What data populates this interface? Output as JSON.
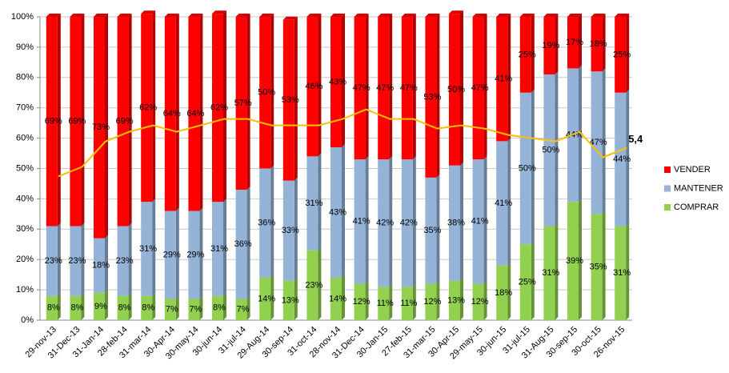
{
  "chart_data": {
    "type": "bar",
    "stacked": true,
    "categories": [
      "29-nov-13",
      "31-Dec-13",
      "31-Jan-14",
      "28-feb-14",
      "31-mar-14",
      "30-Apr-14",
      "30-may-14",
      "30-jun-14",
      "31-jul-14",
      "29-Aug-14",
      "30-sep-14",
      "31-oct-14",
      "28-nov-14",
      "31-Dec-14",
      "30-Jan-15",
      "27-feb-15",
      "31-mar-15",
      "30-Apr-15",
      "29-may-15",
      "30-jun-15",
      "31-jul-15",
      "31-Aug-15",
      "30-sep-15",
      "30-oct-15",
      "26-nov-15"
    ],
    "series": [
      {
        "name": "COMPRAR",
        "color": "#92d050",
        "values": [
          8,
          8,
          9,
          8,
          8,
          7,
          7,
          8,
          7,
          14,
          13,
          23,
          14,
          12,
          11,
          11,
          12,
          13,
          12,
          18,
          25,
          31,
          39,
          35,
          31
        ],
        "value_labels": [
          "8%",
          "8%",
          "9%",
          "8%",
          "8%",
          "7%",
          "7%",
          "8%",
          "7%",
          "14%",
          "13%",
          "23%",
          "14%",
          "12%",
          "11%",
          "11%",
          "12%",
          "13%",
          "12%",
          "18%",
          "25%",
          "31%",
          "39%",
          "35%",
          "31%"
        ]
      },
      {
        "name": "MANTENER",
        "color": "#95b3d7",
        "values": [
          23,
          23,
          18,
          23,
          31,
          29,
          29,
          31,
          36,
          36,
          33,
          31,
          43,
          41,
          42,
          42,
          35,
          38,
          41,
          41,
          50,
          50,
          44,
          47,
          44
        ],
        "value_labels": [
          "23%",
          "23%",
          "18%",
          "23%",
          "31%",
          "29%",
          "29%",
          "31%",
          "36%",
          "36%",
          "33%",
          "31%",
          "43%",
          "41%",
          "42%",
          "42%",
          "35%",
          "38%",
          "41%",
          "41%",
          "50%",
          "50%",
          "44%",
          "47%",
          "44%"
        ]
      },
      {
        "name": "VENDER",
        "color": "#ff0000",
        "values": [
          69,
          69,
          73,
          69,
          62,
          64,
          64,
          62,
          57,
          50,
          53,
          46,
          43,
          47,
          47,
          47,
          53,
          50,
          47,
          41,
          25,
          19,
          17,
          18,
          25
        ],
        "value_labels": [
          "69%",
          "69%",
          "73%",
          "69%",
          "62%",
          "64%",
          "64%",
          "62%",
          "57%",
          "50%",
          "53%",
          "46%",
          "43%",
          "47%",
          "47%",
          "47%",
          "53%",
          "50%",
          "47%",
          "41%",
          "25%",
          "19%",
          "17%",
          "18%",
          "25%"
        ]
      },
      {
        "type": "line",
        "axis": "y2",
        "color": "#ffc000",
        "values": [
          4.5,
          4.8,
          5.6,
          5.9,
          6.1,
          5.9,
          6.1,
          6.3,
          6.3,
          6.1,
          6.1,
          6.1,
          6.3,
          6.6,
          6.3,
          6.3,
          6.0,
          6.1,
          6.0,
          5.8,
          5.7,
          5.6,
          5.9,
          5.1,
          5.4
        ],
        "value_labels": [
          null,
          null,
          null,
          null,
          null,
          null,
          null,
          null,
          null,
          null,
          null,
          null,
          null,
          null,
          null,
          null,
          null,
          null,
          null,
          null,
          null,
          null,
          null,
          null,
          "5,4"
        ]
      }
    ],
    "ylim": [
      0,
      100
    ],
    "yticks": [
      {
        "value": 0,
        "label": "0%"
      },
      {
        "value": 10,
        "label": "10%"
      },
      {
        "value": 20,
        "label": "20%"
      },
      {
        "value": 30,
        "label": "30%"
      },
      {
        "value": 40,
        "label": "40%"
      },
      {
        "value": 50,
        "label": "50%"
      },
      {
        "value": 60,
        "label": "60%"
      },
      {
        "value": 70,
        "label": "70%"
      },
      {
        "value": 80,
        "label": "80%"
      },
      {
        "value": 90,
        "label": "90%"
      },
      {
        "value": 100,
        "label": "100%"
      }
    ],
    "y2lim": [
      0,
      9.5
    ],
    "grid": true,
    "legend": "right"
  }
}
